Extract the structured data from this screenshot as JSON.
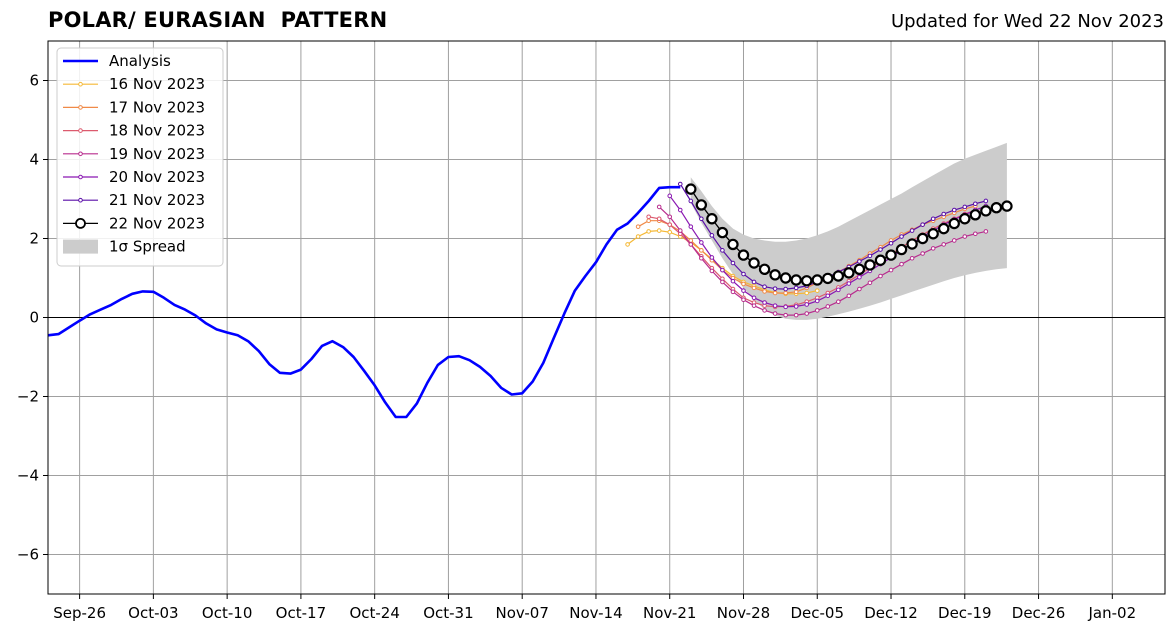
{
  "chart_data": {
    "type": "line",
    "title": "POLAR/ EURASIAN  PATTERN",
    "subtitle": "Updated for Wed 22 Nov 2023",
    "xlabel": "",
    "ylabel": "",
    "ylim": [
      -7,
      7
    ],
    "xlim": [
      "2023-09-23",
      "2024-01-07"
    ],
    "grid": true,
    "legend_position": "upper-left",
    "yticks": [
      "6",
      "4",
      "2",
      "0",
      "−2",
      "−4",
      "−6"
    ],
    "xticks": [
      "Sep-26",
      "Oct-03",
      "Oct-10",
      "Oct-17",
      "Oct-24",
      "Oct-31",
      "Nov-07",
      "Nov-14",
      "Nov-21",
      "Nov-28",
      "Dec-05",
      "Dec-12",
      "Dec-19",
      "Dec-26",
      "Jan-02"
    ],
    "analysis": {
      "name": "Analysis",
      "color": "#0000ff",
      "x": [
        "2023-09-23",
        "2023-09-24",
        "2023-09-25",
        "2023-09-26",
        "2023-09-27",
        "2023-09-28",
        "2023-09-29",
        "2023-09-30",
        "2023-10-01",
        "2023-10-02",
        "2023-10-03",
        "2023-10-04",
        "2023-10-05",
        "2023-10-06",
        "2023-10-07",
        "2023-10-08",
        "2023-10-09",
        "2023-10-10",
        "2023-10-11",
        "2023-10-12",
        "2023-10-13",
        "2023-10-14",
        "2023-10-15",
        "2023-10-16",
        "2023-10-17",
        "2023-10-18",
        "2023-10-19",
        "2023-10-20",
        "2023-10-21",
        "2023-10-22",
        "2023-10-23",
        "2023-10-24",
        "2023-10-25",
        "2023-10-26",
        "2023-10-27",
        "2023-10-28",
        "2023-10-29",
        "2023-10-30",
        "2023-10-31",
        "2023-11-01",
        "2023-11-02",
        "2023-11-03",
        "2023-11-04",
        "2023-11-05",
        "2023-11-06",
        "2023-11-07",
        "2023-11-08",
        "2023-11-09",
        "2023-11-10",
        "2023-11-11",
        "2023-11-12",
        "2023-11-13",
        "2023-11-14",
        "2023-11-15",
        "2023-11-16",
        "2023-11-17",
        "2023-11-18",
        "2023-11-19",
        "2023-11-20",
        "2023-11-21",
        "2023-11-22"
      ],
      "y": [
        -0.45,
        -0.42,
        -0.25,
        -0.08,
        0.08,
        0.2,
        0.32,
        0.47,
        0.6,
        0.66,
        0.65,
        0.5,
        0.32,
        0.2,
        0.05,
        -0.15,
        -0.3,
        -0.38,
        -0.45,
        -0.6,
        -0.85,
        -1.18,
        -1.4,
        -1.42,
        -1.32,
        -1.05,
        -0.72,
        -0.6,
        -0.75,
        -1.0,
        -1.35,
        -1.72,
        -2.15,
        -2.52,
        -2.52,
        -2.18,
        -1.65,
        -1.2,
        -1.0,
        -0.98,
        -1.08,
        -1.25,
        -1.48,
        -1.78,
        -1.95,
        -1.92,
        -1.62,
        -1.15,
        -0.52,
        0.1,
        0.68,
        1.05,
        1.4,
        1.85,
        2.22,
        2.38,
        2.65,
        2.95,
        3.28,
        3.3,
        3.3
      ]
    },
    "forecasts": [
      {
        "name": "16 Nov 2023",
        "color": "#f5b937",
        "start": "2023-11-17",
        "y": [
          1.85,
          2.05,
          2.18,
          2.2,
          2.16,
          2.05,
          1.9,
          1.7,
          1.48,
          1.25,
          1.05,
          0.9,
          0.8,
          0.7,
          0.63,
          0.6,
          0.6,
          0.62,
          0.68
        ]
      },
      {
        "name": "17 Nov 2023",
        "color": "#f08a48",
        "start": "2023-11-18",
        "y": [
          2.3,
          2.45,
          2.45,
          2.35,
          2.18,
          1.95,
          1.7,
          1.45,
          1.2,
          1.0,
          0.85,
          0.75,
          0.66,
          0.62,
          0.62,
          0.65,
          0.75,
          0.88,
          1.0,
          1.15,
          1.3,
          1.45,
          1.62,
          1.78,
          1.95,
          2.1,
          2.22,
          2.35,
          2.45,
          2.55,
          2.65,
          2.75,
          2.82
        ]
      },
      {
        "name": "18 Nov 2023",
        "color": "#dc5a6e",
        "start": "2023-11-19",
        "y": [
          2.55,
          2.5,
          2.35,
          2.12,
          1.85,
          1.55,
          1.25,
          0.98,
          0.72,
          0.5,
          0.38,
          0.3,
          0.27,
          0.28,
          0.32,
          0.4,
          0.5,
          0.62,
          0.76,
          0.92,
          1.08,
          1.25,
          1.42,
          1.6,
          1.78,
          1.95,
          2.1,
          2.25,
          2.38,
          2.5,
          2.62,
          2.72,
          2.8
        ]
      },
      {
        "name": "19 Nov 2023",
        "color": "#b82d8e",
        "start": "2023-11-20",
        "y": [
          2.8,
          2.55,
          2.2,
          1.85,
          1.5,
          1.18,
          0.9,
          0.65,
          0.45,
          0.3,
          0.18,
          0.1,
          0.06,
          0.06,
          0.1,
          0.18,
          0.28,
          0.4,
          0.55,
          0.72,
          0.88,
          1.05,
          1.2,
          1.35,
          1.5,
          1.62,
          1.75,
          1.85,
          1.95,
          2.05,
          2.12,
          2.18
        ]
      },
      {
        "name": "20 Nov 2023",
        "color": "#8a18b2",
        "start": "2023-11-21",
        "y": [
          3.08,
          2.72,
          2.3,
          1.9,
          1.52,
          1.2,
          0.92,
          0.68,
          0.5,
          0.38,
          0.3,
          0.27,
          0.28,
          0.33,
          0.42,
          0.55,
          0.7,
          0.86,
          1.02,
          1.18,
          1.35,
          1.52,
          1.7,
          1.88,
          2.05,
          2.2,
          2.35,
          2.48,
          2.6,
          2.72,
          2.82
        ]
      },
      {
        "name": "21 Nov 2023",
        "color": "#5a0fa8",
        "start": "2023-11-22",
        "y": [
          3.38,
          2.95,
          2.5,
          2.08,
          1.7,
          1.38,
          1.1,
          0.9,
          0.78,
          0.73,
          0.72,
          0.75,
          0.8,
          0.9,
          1.02,
          1.15,
          1.28,
          1.42,
          1.56,
          1.72,
          1.88,
          2.05,
          2.2,
          2.35,
          2.5,
          2.62,
          2.72,
          2.8,
          2.88,
          2.95
        ]
      },
      {
        "name": "22 Nov 2023",
        "color": "#000000",
        "start": "2023-11-23",
        "y": [
          3.25,
          2.85,
          2.5,
          2.15,
          1.85,
          1.58,
          1.38,
          1.22,
          1.08,
          1.0,
          0.95,
          0.93,
          0.95,
          0.99,
          1.05,
          1.13,
          1.22,
          1.33,
          1.45,
          1.58,
          1.72,
          1.86,
          2.0,
          2.12,
          2.25,
          2.38,
          2.5,
          2.6,
          2.7,
          2.78,
          2.82
        ]
      }
    ],
    "spread": {
      "name": "1σ Spread",
      "color": "#cccccc",
      "start": "2023-11-23",
      "upper": [
        3.55,
        3.2,
        2.82,
        2.5,
        2.25,
        2.1,
        2.0,
        1.95,
        1.92,
        1.92,
        1.95,
        2.0,
        2.08,
        2.18,
        2.3,
        2.44,
        2.58,
        2.72,
        2.86,
        3.0,
        3.14,
        3.3,
        3.45,
        3.6,
        3.75,
        3.9,
        4.02,
        4.12,
        4.22,
        4.32,
        4.42
      ],
      "lower": [
        2.9,
        2.4,
        1.95,
        1.5,
        1.1,
        0.75,
        0.45,
        0.2,
        0.05,
        -0.03,
        -0.06,
        -0.06,
        -0.03,
        0.02,
        0.08,
        0.15,
        0.22,
        0.3,
        0.38,
        0.47,
        0.56,
        0.65,
        0.74,
        0.83,
        0.92,
        1.0,
        1.07,
        1.13,
        1.18,
        1.22,
        1.25
      ]
    }
  }
}
